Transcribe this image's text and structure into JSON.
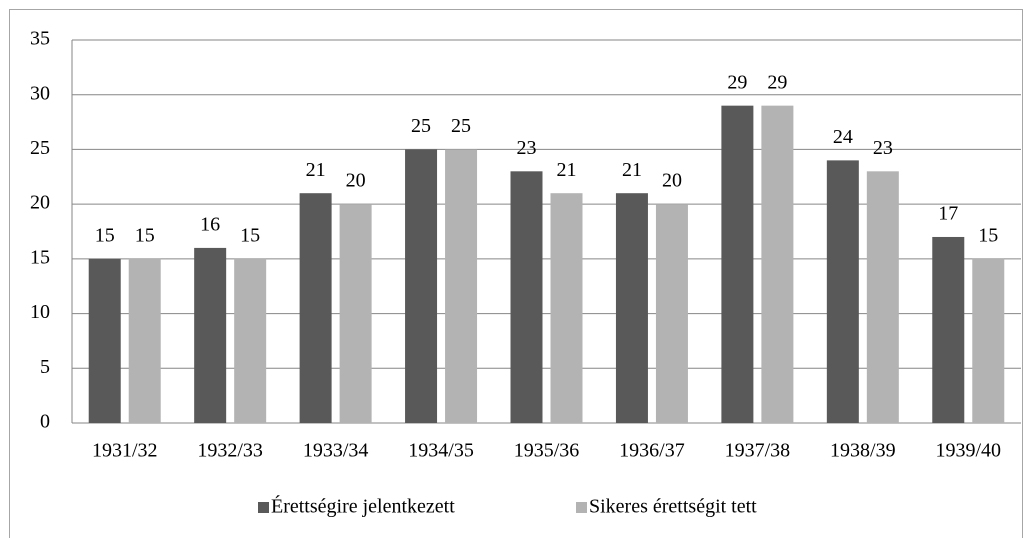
{
  "chart_data": {
    "type": "bar",
    "categories": [
      "1931/32",
      "1932/33",
      "1933/34",
      "1934/35",
      "1935/36",
      "1936/37",
      "1937/38",
      "1938/39",
      "1939/40"
    ],
    "series": [
      {
        "name": "Érettségire jelentkezett",
        "color": "#595959",
        "values": [
          15,
          16,
          21,
          25,
          23,
          21,
          29,
          24,
          17
        ]
      },
      {
        "name": "Sikeres érettségit tett",
        "color": "#b3b3b3",
        "values": [
          15,
          15,
          20,
          25,
          21,
          20,
          29,
          23,
          15
        ]
      }
    ],
    "ylim": [
      0,
      35
    ],
    "yticks": [
      0,
      5,
      10,
      15,
      20,
      25,
      30,
      35
    ],
    "grid": true,
    "legend": "bottom"
  }
}
